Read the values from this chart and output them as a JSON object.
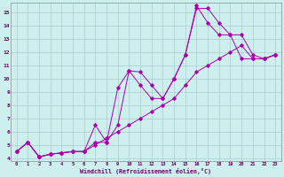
{
  "xlabel": "Windchill (Refroidissement éolien,°C)",
  "bg_color": "#cdf0ee",
  "grid_color": "#aacccc",
  "line_color": "#aa00aa",
  "xlim": [
    -0.5,
    23.5
  ],
  "ylim": [
    3.8,
    15.7
  ],
  "xticks": [
    0,
    1,
    2,
    3,
    4,
    5,
    6,
    7,
    8,
    9,
    10,
    11,
    12,
    13,
    14,
    15,
    16,
    17,
    18,
    19,
    20,
    21,
    22,
    23
  ],
  "yticks": [
    4,
    5,
    6,
    7,
    8,
    9,
    10,
    11,
    12,
    13,
    14,
    15
  ],
  "lines": [
    {
      "x": [
        0,
        1,
        2,
        3,
        4,
        5,
        6,
        7,
        8,
        9,
        10,
        11,
        12,
        13,
        14,
        15,
        16,
        17,
        18,
        19,
        20,
        21,
        22,
        23
      ],
      "y": [
        4.5,
        5.2,
        4.1,
        4.3,
        4.4,
        4.5,
        4.5,
        5.0,
        5.5,
        6.0,
        6.5,
        7.0,
        7.5,
        8.0,
        8.5,
        9.5,
        10.5,
        11.0,
        11.5,
        12.0,
        12.5,
        11.5,
        11.5,
        11.8
      ]
    },
    {
      "x": [
        0,
        1,
        2,
        3,
        4,
        5,
        6,
        7,
        8,
        9,
        10,
        11,
        12,
        13,
        14,
        15,
        16,
        17,
        18,
        19,
        20,
        21,
        22,
        23
      ],
      "y": [
        4.5,
        5.2,
        4.1,
        4.3,
        4.4,
        4.5,
        4.5,
        6.5,
        5.2,
        6.5,
        10.6,
        10.5,
        9.5,
        8.5,
        10.0,
        11.8,
        15.5,
        14.2,
        13.3,
        13.3,
        13.3,
        11.8,
        11.5,
        11.8
      ]
    },
    {
      "x": [
        0,
        1,
        2,
        3,
        4,
        5,
        6,
        7,
        8,
        9,
        10,
        11,
        12,
        13,
        14,
        15,
        16,
        17,
        18,
        19,
        20,
        21,
        22,
        23
      ],
      "y": [
        4.5,
        5.2,
        4.1,
        4.3,
        4.4,
        4.5,
        4.5,
        5.2,
        5.2,
        9.3,
        10.6,
        9.5,
        8.5,
        8.5,
        10.0,
        11.8,
        15.3,
        15.3,
        14.2,
        13.3,
        11.5,
        11.5,
        11.5,
        11.8
      ]
    }
  ]
}
